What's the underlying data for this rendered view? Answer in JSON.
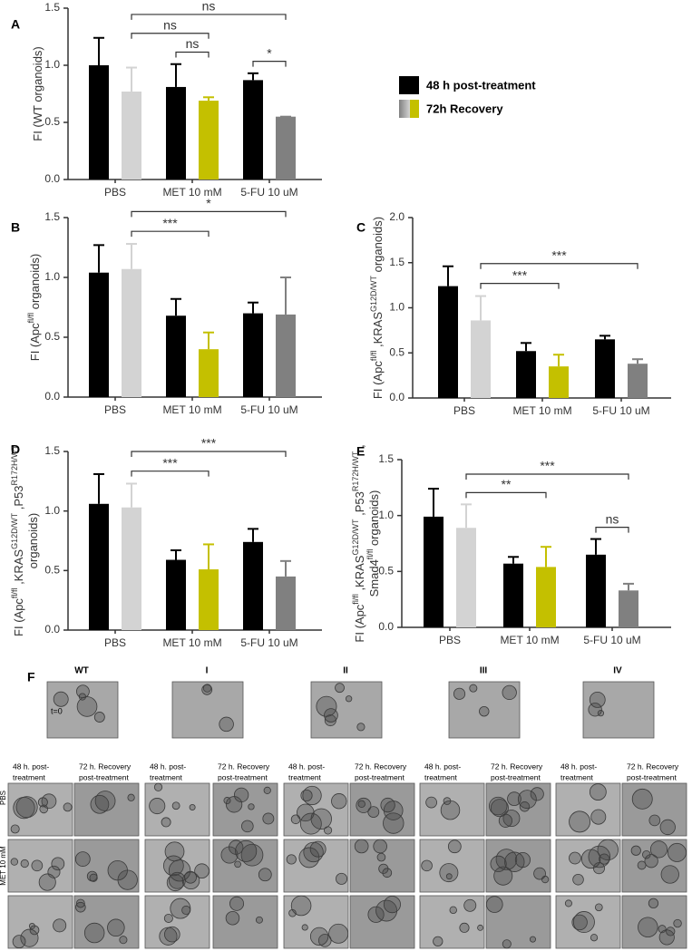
{
  "chart_data": [
    {
      "type": "bar",
      "label": "A",
      "ylabel": [
        [
          {
            "text": "FI (WT organoids)"
          }
        ]
      ],
      "categories": [
        "PBS",
        "MET 10 mM",
        "5-FU 10 uM"
      ],
      "series": [
        {
          "name": "48 h post-treatment",
          "color": "#000000",
          "values": [
            1.0,
            0.81,
            0.87
          ],
          "errors": [
            0.24,
            0.2,
            0.06
          ]
        },
        {
          "name": "72h Recovery",
          "colors": [
            "#d3d3d3",
            "#c4c000",
            "#808080"
          ],
          "values": [
            0.77,
            0.69,
            0.55
          ],
          "errors": [
            0.21,
            0.03,
            0.0
          ]
        }
      ],
      "ylim": [
        0,
        1.5
      ],
      "yticks": [
        {
          "value": 0,
          "label": "0.0"
        },
        0.5,
        {
          "value": 1,
          "label": "1.0"
        },
        1.5
      ],
      "legend": "right",
      "brackets": [
        {
          "label": "ns",
          "from": [
            1,
            0
          ],
          "to": [
            1,
            1
          ]
        },
        {
          "label": "*",
          "from": [
            2,
            0
          ],
          "to": [
            2,
            1
          ]
        },
        {
          "label": "ns",
          "from": [
            0,
            1
          ],
          "to": [
            1,
            1
          ]
        },
        {
          "label": "ns",
          "from": [
            0,
            1
          ],
          "to": [
            2,
            1
          ]
        }
      ]
    },
    {
      "type": "bar",
      "label": "B",
      "ylabel": [
        [
          {
            "text": "FI (Apc"
          },
          {
            "sup": "fl/fl"
          },
          {
            "text": " organoids)"
          }
        ]
      ],
      "categories": [
        "PBS",
        "MET 10 mM",
        "5-FU 10 uM"
      ],
      "series": [
        {
          "color": "#000000",
          "values": [
            1.04,
            0.68,
            0.7
          ],
          "errors": [
            0.23,
            0.14,
            0.09
          ]
        },
        {
          "colors": [
            "#d3d3d3",
            "#c4c000",
            "#808080"
          ],
          "values": [
            1.07,
            0.4,
            0.69
          ],
          "errors": [
            0.21,
            0.14,
            0.31
          ]
        }
      ],
      "ylim": [
        0,
        1.5
      ],
      "yticks": [
        {
          "value": 0,
          "label": "0.0"
        },
        0.5,
        {
          "value": 1,
          "label": "1.0"
        },
        1.5
      ],
      "brackets": [
        {
          "label": "***",
          "from": [
            0,
            1
          ],
          "to": [
            1,
            1
          ]
        },
        {
          "label": "*",
          "from": [
            0,
            1
          ],
          "to": [
            2,
            1
          ]
        }
      ]
    },
    {
      "type": "bar",
      "label": "C",
      "ylabel": [
        [
          {
            "text": "FI (Apc"
          },
          {
            "sup": "fl/fl"
          },
          {
            "text": " ,KRAS"
          },
          {
            "sup": "G12D/WT"
          },
          {
            "text": " organoids)"
          }
        ]
      ],
      "categories": [
        "PBS",
        "MET 10 mM",
        "5-FU 10 uM"
      ],
      "series": [
        {
          "color": "#000000",
          "values": [
            1.24,
            0.52,
            0.65
          ],
          "errors": [
            0.22,
            0.09,
            0.04
          ]
        },
        {
          "colors": [
            "#d3d3d3",
            "#c4c000",
            "#808080"
          ],
          "values": [
            0.86,
            0.35,
            0.38
          ],
          "errors": [
            0.27,
            0.13,
            0.05
          ]
        }
      ],
      "ylim": [
        0,
        2
      ],
      "yticks": [
        {
          "value": 0,
          "label": "0.0"
        },
        0.5,
        {
          "value": 1,
          "label": "1.0"
        },
        1.5,
        {
          "value": 2,
          "label": "2.0"
        }
      ],
      "brackets": [
        {
          "label": "***",
          "from": [
            0,
            1
          ],
          "to": [
            1,
            1
          ]
        },
        {
          "label": "***",
          "from": [
            0,
            1
          ],
          "to": [
            2,
            1
          ]
        }
      ]
    },
    {
      "type": "bar",
      "label": "D",
      "ylabel": [
        [
          {
            "text": "FI (Apc"
          },
          {
            "sup": "fl/fl"
          },
          {
            "text": " ,KRAS"
          },
          {
            "sup": "G12D/WT"
          },
          {
            "text": " ,P53"
          },
          {
            "sup": "R172H/WT"
          }
        ],
        [
          {
            "text": "organoids)"
          }
        ]
      ],
      "categories": [
        "PBS",
        "MET 10 mM",
        "5-FU 10 uM"
      ],
      "series": [
        {
          "color": "#000000",
          "values": [
            1.06,
            0.59,
            0.74
          ],
          "errors": [
            0.25,
            0.08,
            0.11
          ]
        },
        {
          "colors": [
            "#d3d3d3",
            "#c4c000",
            "#808080"
          ],
          "values": [
            1.03,
            0.51,
            0.45
          ],
          "errors": [
            0.2,
            0.21,
            0.13
          ]
        }
      ],
      "ylim": [
        0,
        1.5
      ],
      "yticks": [
        {
          "value": 0,
          "label": "0.0"
        },
        0.5,
        {
          "value": 1,
          "label": "1.0"
        },
        1.5
      ],
      "brackets": [
        {
          "label": "***",
          "from": [
            0,
            1
          ],
          "to": [
            1,
            1
          ]
        },
        {
          "label": "***",
          "from": [
            0,
            1
          ],
          "to": [
            2,
            1
          ]
        }
      ]
    },
    {
      "type": "bar",
      "label": "E",
      "ylabel": [
        [
          {
            "text": "FI (Apc"
          },
          {
            "sup": "fl/fl"
          },
          {
            "text": " ,KRAS"
          },
          {
            "sup": "G12D/WT"
          },
          {
            "text": " ,P53"
          },
          {
            "sup": "R172H/WT"
          },
          {
            "text": " ,"
          }
        ],
        [
          {
            "text": "Smad4"
          },
          {
            "sup": "fl/fl"
          },
          {
            "text": " organoids)"
          }
        ]
      ],
      "categories": [
        "PBS",
        "MET 10 mM",
        "5-FU 10 uM"
      ],
      "series": [
        {
          "color": "#000000",
          "values": [
            0.99,
            0.57,
            0.65
          ],
          "errors": [
            0.25,
            0.06,
            0.14
          ]
        },
        {
          "colors": [
            "#d3d3d3",
            "#c4c000",
            "#808080"
          ],
          "values": [
            0.89,
            0.54,
            0.33
          ],
          "errors": [
            0.21,
            0.18,
            0.06
          ]
        }
      ],
      "ylim": [
        0,
        1.5
      ],
      "yticks": [
        {
          "value": 0,
          "label": "0.0"
        },
        0.5,
        {
          "value": 1,
          "label": "1.0"
        },
        1.5
      ],
      "brackets": [
        {
          "label": "ns",
          "from": [
            2,
            0
          ],
          "to": [
            2,
            1
          ]
        },
        {
          "label": "**",
          "from": [
            0,
            1
          ],
          "to": [
            1,
            1
          ]
        },
        {
          "label": "***",
          "from": [
            0,
            1
          ],
          "to": [
            2,
            1
          ]
        }
      ]
    }
  ],
  "micrographs": {
    "label": "F",
    "t0": "t=0",
    "columns": [
      "WT",
      "I",
      "II",
      "III",
      "IV"
    ],
    "subheaders": [
      [
        "48 h. post-",
        "treatment"
      ],
      [
        "72 h.  Recovery",
        "post-treatment"
      ]
    ],
    "rows": [
      "PBS",
      "MET 10 mM"
    ]
  }
}
